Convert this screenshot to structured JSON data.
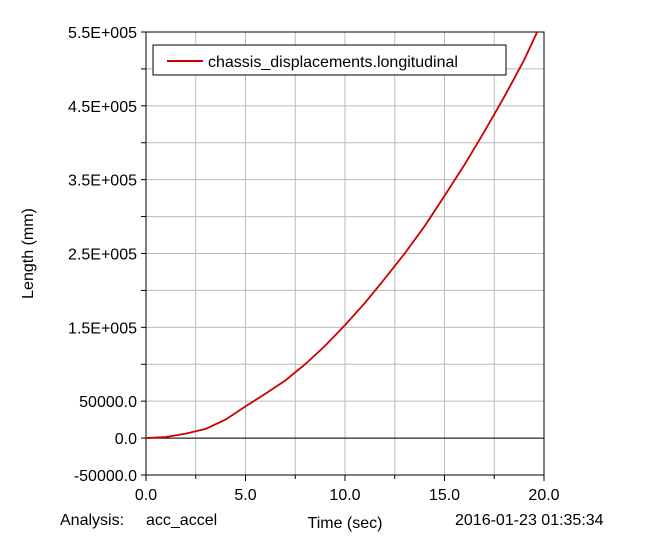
{
  "chart_data": {
    "type": "line",
    "xlabel": "Time (sec)",
    "ylabel": "Length (mm)",
    "xlim": [
      0.0,
      20.0
    ],
    "ylim": [
      -50000.0,
      550000.0
    ],
    "x_ticks": [
      0.0,
      5.0,
      10.0,
      15.0,
      20.0
    ],
    "x_tick_labels": [
      "0.0",
      "5.0",
      "10.0",
      "15.0",
      "20.0"
    ],
    "y_ticks": [
      -50000,
      0,
      50000,
      150000,
      250000,
      350000,
      450000,
      550000
    ],
    "y_tick_labels": [
      "-50000.0",
      "0.0",
      "50000.0",
      "1.5E+005",
      "2.5E+005",
      "3.5E+005",
      "4.5E+005",
      "5.5E+005"
    ],
    "grid": true,
    "legend": "top-left",
    "series": [
      {
        "name": "chassis_displacements.longitudinal",
        "color": "#cc0000",
        "x": [
          0,
          1,
          2,
          3,
          4,
          5,
          6,
          7,
          8,
          9,
          10,
          11,
          12,
          13,
          14,
          15,
          16,
          17,
          18,
          19,
          20
        ],
        "y": [
          0,
          1500,
          6000,
          12500,
          25000,
          43000,
          60000,
          78000,
          100000,
          125000,
          153000,
          183000,
          216000,
          250000,
          287000,
          328000,
          370000,
          415000,
          462000,
          512000,
          570000
        ]
      }
    ]
  },
  "footer": {
    "analysis_label": "Analysis:",
    "analysis_name": "acc_accel",
    "timestamp": "2016-01-23 01:35:34"
  },
  "colors": {
    "axis": "#000000",
    "grid": "#bbbbbb",
    "series": "#cc0000"
  }
}
